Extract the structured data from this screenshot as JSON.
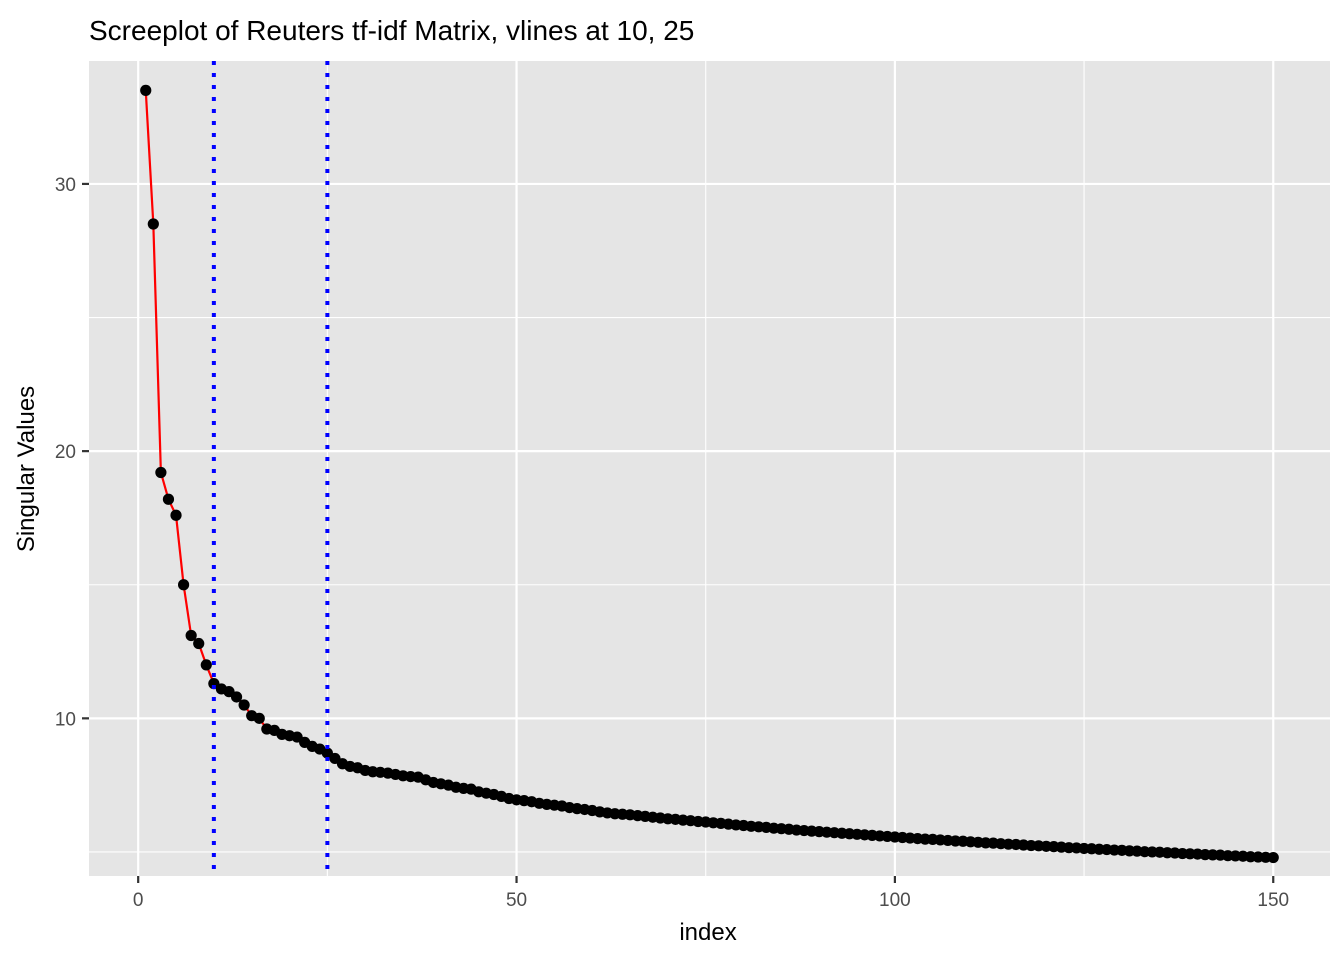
{
  "chart_data": {
    "type": "line",
    "title": "Screeplot of Reuters tf-idf Matrix, vlines at 10, 25",
    "xlabel": "index",
    "ylabel": "Singular Values",
    "xlim": [
      -6.5,
      157.5
    ],
    "ylim": [
      4.1,
      34.6
    ],
    "x_ticks": [
      0,
      50,
      100,
      150
    ],
    "x_tick_labels": [
      "0",
      "50",
      "100",
      "150"
    ],
    "x_minor_ticks": [
      25,
      75,
      125
    ],
    "y_ticks": [
      10,
      20,
      30
    ],
    "y_tick_labels": [
      "10",
      "20",
      "30"
    ],
    "y_minor_ticks": [
      5,
      15,
      25
    ],
    "grid": true,
    "vlines": [
      10,
      25
    ],
    "colors": {
      "panel_background": "#e5e5e5",
      "grid": "#ffffff",
      "line": "#ff0000",
      "points": "#000000",
      "vlines": "#0000ff",
      "tick_text": "#4d4d4d"
    },
    "series": [
      {
        "name": "Singular Values",
        "x": [
          1,
          2,
          3,
          4,
          5,
          6,
          7,
          8,
          9,
          10,
          11,
          12,
          13,
          14,
          15,
          16,
          17,
          18,
          19,
          20,
          21,
          22,
          23,
          24,
          25,
          26,
          27,
          28,
          29,
          30,
          31,
          32,
          33,
          34,
          35,
          36,
          37,
          38,
          39,
          40,
          41,
          42,
          43,
          44,
          45,
          46,
          47,
          48,
          49,
          50,
          51,
          52,
          53,
          54,
          55,
          56,
          57,
          58,
          59,
          60,
          61,
          62,
          63,
          64,
          65,
          66,
          67,
          68,
          69,
          70,
          71,
          72,
          73,
          74,
          75,
          76,
          77,
          78,
          79,
          80,
          81,
          82,
          83,
          84,
          85,
          86,
          87,
          88,
          89,
          90,
          91,
          92,
          93,
          94,
          95,
          96,
          97,
          98,
          99,
          100,
          101,
          102,
          103,
          104,
          105,
          106,
          107,
          108,
          109,
          110,
          111,
          112,
          113,
          114,
          115,
          116,
          117,
          118,
          119,
          120,
          121,
          122,
          123,
          124,
          125,
          126,
          127,
          128,
          129,
          130,
          131,
          132,
          133,
          134,
          135,
          136,
          137,
          138,
          139,
          140,
          141,
          142,
          143,
          144,
          145,
          146,
          147,
          148,
          149,
          150
        ],
        "values": [
          33.5,
          28.5,
          19.2,
          18.2,
          17.6,
          15.0,
          13.1,
          12.8,
          12.0,
          11.3,
          11.1,
          11.0,
          10.8,
          10.5,
          10.1,
          10.0,
          9.6,
          9.55,
          9.4,
          9.35,
          9.3,
          9.1,
          8.95,
          8.85,
          8.7,
          8.5,
          8.3,
          8.2,
          8.15,
          8.05,
          8.0,
          7.98,
          7.95,
          7.9,
          7.85,
          7.82,
          7.8,
          7.7,
          7.6,
          7.55,
          7.5,
          7.42,
          7.38,
          7.35,
          7.25,
          7.2,
          7.15,
          7.08,
          7.0,
          6.95,
          6.92,
          6.88,
          6.82,
          6.78,
          6.75,
          6.72,
          6.66,
          6.62,
          6.59,
          6.55,
          6.5,
          6.46,
          6.43,
          6.41,
          6.39,
          6.36,
          6.33,
          6.3,
          6.27,
          6.24,
          6.22,
          6.19,
          6.17,
          6.14,
          6.12,
          6.09,
          6.07,
          6.04,
          6.01,
          5.99,
          5.96,
          5.94,
          5.92,
          5.89,
          5.87,
          5.85,
          5.82,
          5.8,
          5.78,
          5.76,
          5.74,
          5.72,
          5.7,
          5.68,
          5.66,
          5.64,
          5.62,
          5.6,
          5.58,
          5.56,
          5.54,
          5.52,
          5.5,
          5.48,
          5.47,
          5.45,
          5.43,
          5.41,
          5.4,
          5.38,
          5.36,
          5.34,
          5.33,
          5.31,
          5.29,
          5.28,
          5.26,
          5.24,
          5.23,
          5.21,
          5.2,
          5.18,
          5.16,
          5.15,
          5.13,
          5.12,
          5.1,
          5.09,
          5.07,
          5.06,
          5.04,
          5.03,
          5.01,
          5.0,
          4.99,
          4.97,
          4.96,
          4.94,
          4.93,
          4.92,
          4.9,
          4.89,
          4.88,
          4.86,
          4.85,
          4.84,
          4.82,
          4.81,
          4.8,
          4.79
        ]
      }
    ]
  }
}
